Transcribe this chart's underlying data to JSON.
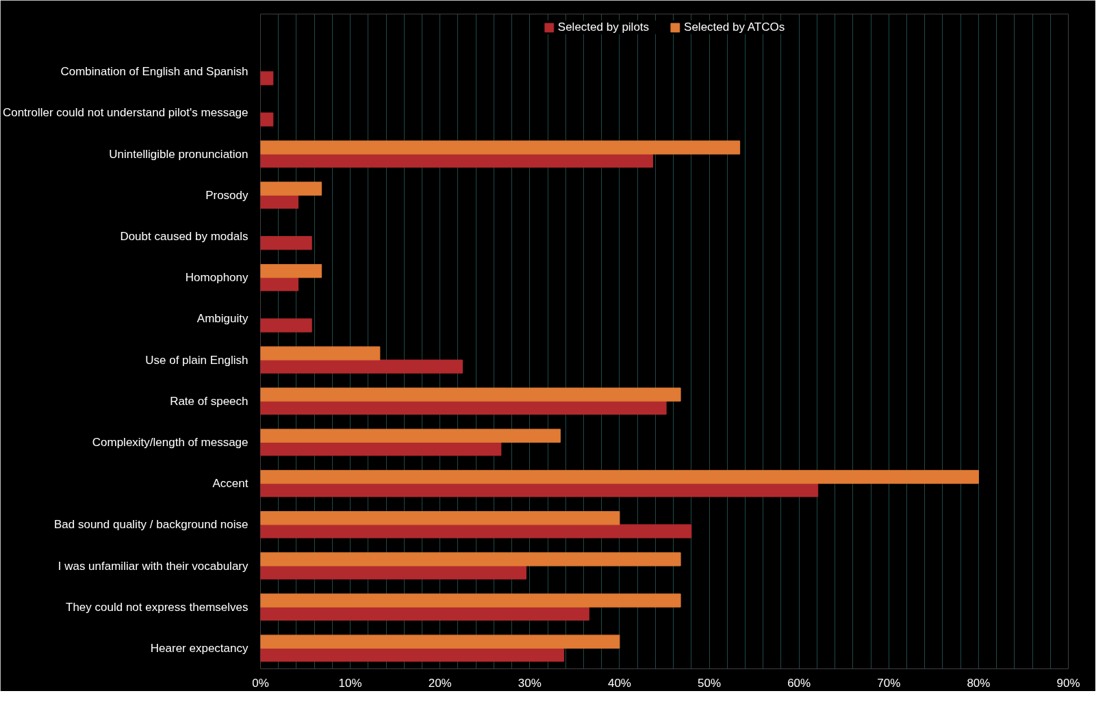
{
  "chart_data": {
    "type": "bar",
    "orientation": "horizontal",
    "categories": [
      "Combination of English and Spanish",
      "Controller could not understand pilot's message",
      "Unintelligible pronunciation",
      "Prosody",
      "Doubt caused by modals",
      "Homophony",
      "Ambiguity",
      "Use of plain English",
      "Rate of speech",
      "Complexity/length of message",
      "Accent",
      "Bad sound quality / background noise",
      "I was unfamiliar with their vocabulary",
      "They could not express themselves",
      "Hearer expectancy"
    ],
    "series": [
      {
        "name": "Selected by pilots",
        "color": "#b22a2e",
        "values": [
          1.4,
          1.4,
          43.7,
          4.2,
          5.7,
          4.2,
          5.7,
          22.5,
          45.2,
          26.8,
          62.1,
          48.0,
          29.6,
          36.6,
          33.8
        ]
      },
      {
        "name": "Selected by ATCOs",
        "color": "#e07a35",
        "values": [
          null,
          null,
          53.4,
          6.8,
          null,
          6.8,
          null,
          13.3,
          46.8,
          33.4,
          80.0,
          40.0,
          46.8,
          46.8,
          40.0
        ]
      }
    ],
    "xlim": [
      0,
      90
    ],
    "xticks": [
      {
        "value": 0,
        "label": "0%"
      },
      {
        "value": 2,
        "label": null
      },
      {
        "value": 4,
        "label": null
      },
      {
        "value": 6,
        "label": null
      },
      {
        "value": 8,
        "label": null
      },
      {
        "value": 10,
        "label": "10%"
      },
      {
        "value": 12,
        "label": null
      },
      {
        "value": 14,
        "label": null
      },
      {
        "value": 16,
        "label": null
      },
      {
        "value": 18,
        "label": null
      },
      {
        "value": 20,
        "label": "20%"
      },
      {
        "value": 22,
        "label": null
      },
      {
        "value": 24,
        "label": null
      },
      {
        "value": 26,
        "label": null
      },
      {
        "value": 28,
        "label": null
      },
      {
        "value": 30,
        "label": "30%"
      },
      {
        "value": 32,
        "label": null
      },
      {
        "value": 34,
        "label": null
      },
      {
        "value": 36,
        "label": null
      },
      {
        "value": 38,
        "label": null
      },
      {
        "value": 40,
        "label": "40%"
      },
      {
        "value": 42,
        "label": null
      },
      {
        "value": 44,
        "label": null
      },
      {
        "value": 46,
        "label": null
      },
      {
        "value": 48,
        "label": null
      },
      {
        "value": 50,
        "label": "50%"
      },
      {
        "value": 52,
        "label": null
      },
      {
        "value": 54,
        "label": null
      },
      {
        "value": 56,
        "label": null
      },
      {
        "value": 58,
        "label": null
      },
      {
        "value": 60,
        "label": "60%"
      },
      {
        "value": 62,
        "label": null
      },
      {
        "value": 64,
        "label": null
      },
      {
        "value": 66,
        "label": null
      },
      {
        "value": 68,
        "label": null
      },
      {
        "value": 70,
        "label": "70%"
      },
      {
        "value": 72,
        "label": null
      },
      {
        "value": 74,
        "label": null
      },
      {
        "value": 76,
        "label": null
      },
      {
        "value": 78,
        "label": null
      },
      {
        "value": 80,
        "label": "80%"
      },
      {
        "value": 82,
        "label": null
      },
      {
        "value": 84,
        "label": null
      },
      {
        "value": 86,
        "label": null
      },
      {
        "value": 88,
        "label": null
      },
      {
        "value": 90,
        "label": "90%"
      }
    ],
    "grid": "x",
    "legend": "top"
  }
}
